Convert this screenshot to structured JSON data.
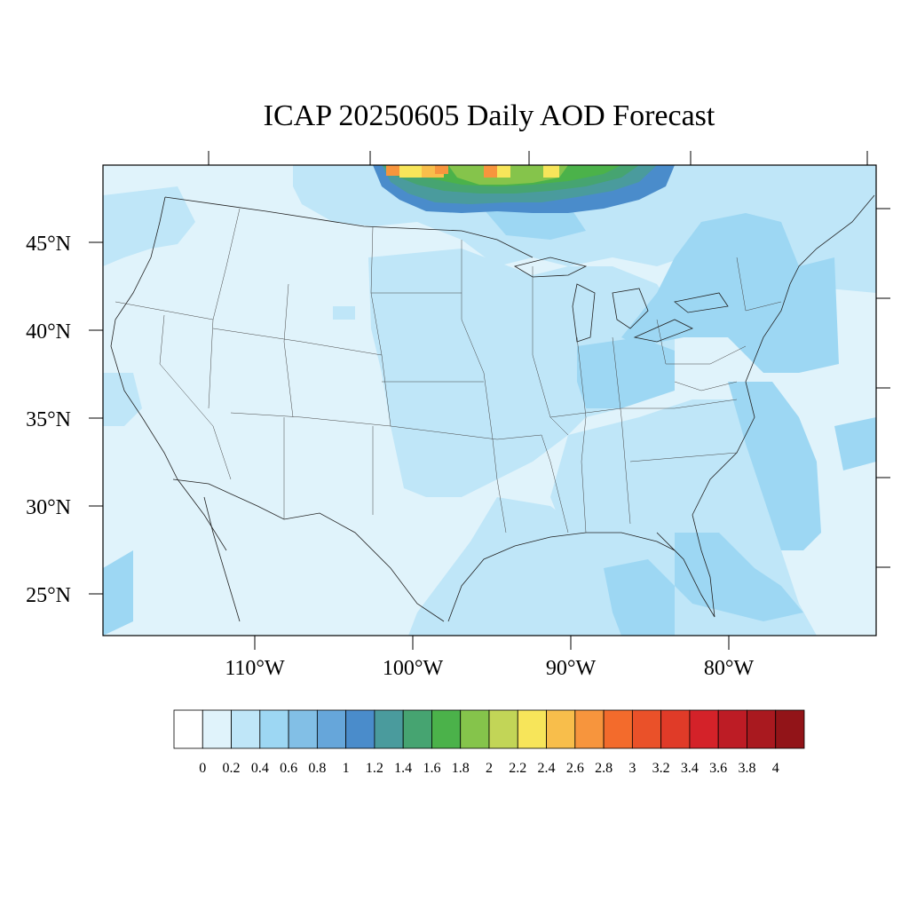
{
  "title": "ICAP 20250605 Daily AOD Forecast",
  "lat_labels": [
    "45°N",
    "40°N",
    "35°N",
    "30°N",
    "25°N"
  ],
  "lon_labels": [
    "110°W",
    "100°W",
    "90°W",
    "80°W"
  ],
  "map_extent": {
    "lon_min": -119,
    "lon_max": -70,
    "lat_min": 22.5,
    "lat_max": 49.5
  },
  "colorbar": {
    "tick_labels": [
      "0",
      "0.2",
      "0.4",
      "0.6",
      "0.8",
      "1",
      "1.2",
      "1.4",
      "1.6",
      "1.8",
      "2",
      "2.2",
      "2.4",
      "2.6",
      "2.8",
      "3",
      "3.2",
      "3.4",
      "3.6",
      "3.8",
      "4"
    ],
    "colors": [
      "#ffffff",
      "#e0f3fb",
      "#bfe6f8",
      "#9dd7f3",
      "#82bfe6",
      "#66a6da",
      "#4a8ccb",
      "#4a9b9d",
      "#46a471",
      "#4bb24a",
      "#85c44b",
      "#c2d557",
      "#f7e55a",
      "#f8be4b",
      "#f7953d",
      "#f36b2c",
      "#ea5129",
      "#e03b28",
      "#d42229",
      "#bd1c25",
      "#a9191f",
      "#921418"
    ]
  },
  "aod_regions": [
    {
      "level": "0-0.2",
      "color": "#e0f3fb",
      "description": "background"
    },
    {
      "level": "0.2-0.4",
      "color": "#bfe6f8"
    },
    {
      "level": "0.4-0.6",
      "color": "#9dd7f3"
    },
    {
      "level": "plume",
      "colors": [
        "#4a8ccb",
        "#46a471",
        "#4bb24a",
        "#85c44b",
        "#f7e55a",
        "#f8be4b",
        "#f7953d"
      ]
    }
  ]
}
